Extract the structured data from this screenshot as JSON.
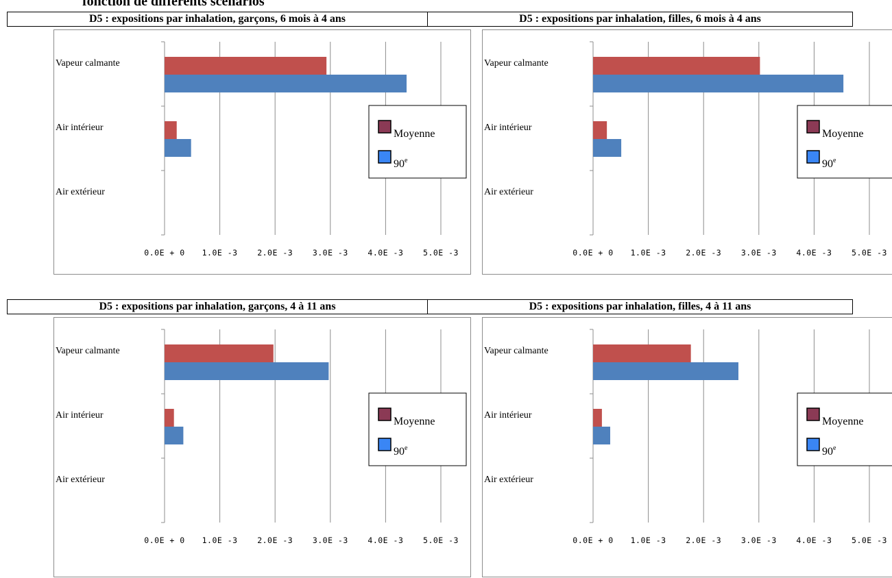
{
  "page": {
    "heading": "fonction de différents scénarios"
  },
  "chart_data": [
    {
      "type": "bar",
      "orientation": "horizontal",
      "title": "D5 : expositions par inhalation, garçons, 6 mois à 4 ans",
      "categories": [
        "Vapeur calmante",
        "Air intérieur",
        "Air extérieur"
      ],
      "series": [
        {
          "name": "Moyenne",
          "color": "#c0504d",
          "legend_color": "#8b3a55",
          "values": [
            0.00293,
            0.00022,
            0.0
          ]
        },
        {
          "name": "90",
          "name_sup": "e",
          "color": "#4f81bd",
          "legend_color": "#3a86f5",
          "values": [
            0.00438,
            0.00048,
            0.0
          ]
        }
      ],
      "xlim": [
        0,
        0.005
      ],
      "xticks": [
        "0.0E + 0",
        "1.0E -3",
        "2.0E -3",
        "3.0E -3",
        "4.0E -3",
        "5.0E -3"
      ],
      "grid": true,
      "legend": "right"
    },
    {
      "type": "bar",
      "orientation": "horizontal",
      "title": "D5 : expositions par inhalation, filles, 6 mois à 4 ans",
      "categories": [
        "Vapeur calmante",
        "Air intérieur",
        "Air extérieur"
      ],
      "series": [
        {
          "name": "Moyenne",
          "color": "#c0504d",
          "legend_color": "#8b3a55",
          "values": [
            0.00302,
            0.00025,
            0.0
          ]
        },
        {
          "name": "90",
          "name_sup": "e",
          "color": "#4f81bd",
          "legend_color": "#3a86f5",
          "values": [
            0.00453,
            0.00051,
            0.0
          ]
        }
      ],
      "xlim": [
        0,
        0.005
      ],
      "xticks": [
        "0.0E + 0",
        "1.0E -3",
        "2.0E -3",
        "3.0E -3",
        "4.0E -3",
        "5.0E -3"
      ],
      "grid": true,
      "legend": "right"
    },
    {
      "type": "bar",
      "orientation": "horizontal",
      "title": "D5 : expositions par inhalation, garçons, 4 à 11 ans",
      "categories": [
        "Vapeur calmante",
        "Air intérieur",
        "Air extérieur"
      ],
      "series": [
        {
          "name": "Moyenne",
          "color": "#c0504d",
          "legend_color": "#8b3a55",
          "values": [
            0.00197,
            0.00017,
            0.0
          ]
        },
        {
          "name": "90",
          "name_sup": "e",
          "color": "#4f81bd",
          "legend_color": "#3a86f5",
          "values": [
            0.00297,
            0.00034,
            0.0
          ]
        }
      ],
      "xlim": [
        0,
        0.005
      ],
      "xticks": [
        "0.0E + 0",
        "1.0E -3",
        "2.0E -3",
        "3.0E -3",
        "4.0E -3",
        "5.0E -3"
      ],
      "grid": true,
      "legend": "right"
    },
    {
      "type": "bar",
      "orientation": "horizontal",
      "title": "D5 : expositions par inhalation, filles, 4 à 11 ans",
      "categories": [
        "Vapeur calmante",
        "Air intérieur",
        "Air extérieur"
      ],
      "series": [
        {
          "name": "Moyenne",
          "color": "#c0504d",
          "legend_color": "#8b3a55",
          "values": [
            0.00177,
            0.00016,
            0.0
          ]
        },
        {
          "name": "90",
          "name_sup": "e",
          "color": "#4f81bd",
          "legend_color": "#3a86f5",
          "values": [
            0.00263,
            0.00031,
            0.0
          ]
        }
      ],
      "xlim": [
        0,
        0.005
      ],
      "xticks": [
        "0.0E + 0",
        "1.0E -3",
        "2.0E -3",
        "3.0E -3",
        "4.0E -3",
        "5.0E -3"
      ],
      "grid": true,
      "legend": "right"
    }
  ]
}
